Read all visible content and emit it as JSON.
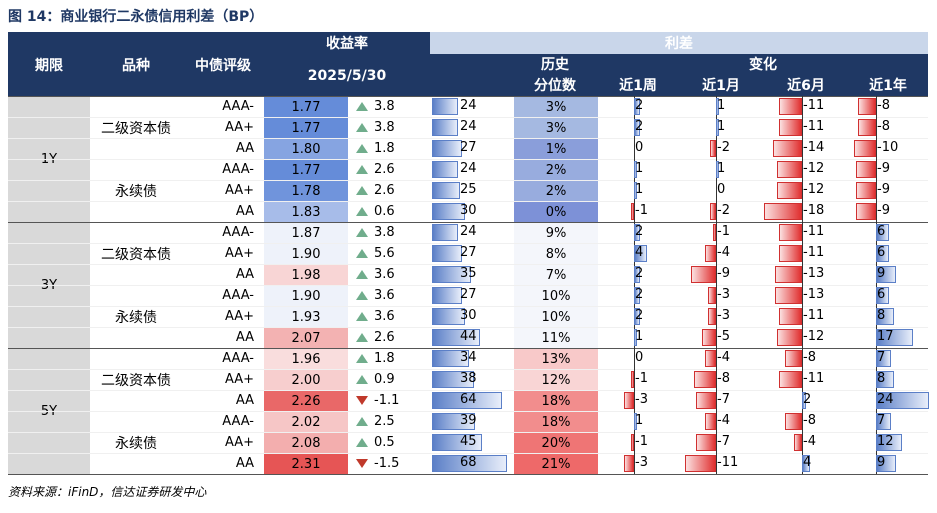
{
  "caption": "图 14：商业银行二永债信用利差（BP）",
  "source": "资料来源：iFinD，信达证券研发中心",
  "header": {
    "term": "期限",
    "type": "品种",
    "rating": "中债评级",
    "yield_group": "收益率",
    "spread_group": "利差",
    "date": "2025/5/30",
    "hist_line1": "历史",
    "hist_line2": "分位数",
    "change": "变化",
    "w1": "近1周",
    "m1": "近1月",
    "m6": "近6月",
    "y1": "近1年"
  },
  "colors": {
    "header_dark": "#1f3864",
    "header_light": "#c9d6ea",
    "group_bg": "#d9d9d9",
    "up_arrow": "#70ad8c",
    "down_arrow": "#c0392b"
  },
  "blocks": [
    {
      "term": "1Y",
      "groups": [
        {
          "type": "二级资本债",
          "rows": [
            {
              "rating": "AAA-",
              "yield": "1.77",
              "dir": "up",
              "chg": "3.8",
              "spread": "24",
              "pct": "3%",
              "w1": "2",
              "m1": "1",
              "m6": "-11",
              "y1": "-8"
            },
            {
              "rating": "AA+",
              "yield": "1.77",
              "dir": "up",
              "chg": "3.8",
              "spread": "24",
              "pct": "3%",
              "w1": "2",
              "m1": "1",
              "m6": "-11",
              "y1": "-8"
            },
            {
              "rating": "AA",
              "yield": "1.80",
              "dir": "up",
              "chg": "1.8",
              "spread": "27",
              "pct": "1%",
              "w1": "0",
              "m1": "-2",
              "m6": "-14",
              "y1": "-10"
            }
          ]
        },
        {
          "type": "永续债",
          "rows": [
            {
              "rating": "AAA-",
              "yield": "1.77",
              "dir": "up",
              "chg": "2.6",
              "spread": "24",
              "pct": "2%",
              "w1": "1",
              "m1": "1",
              "m6": "-12",
              "y1": "-9"
            },
            {
              "rating": "AA+",
              "yield": "1.78",
              "dir": "up",
              "chg": "2.6",
              "spread": "25",
              "pct": "2%",
              "w1": "1",
              "m1": "0",
              "m6": "-12",
              "y1": "-9"
            },
            {
              "rating": "AA",
              "yield": "1.83",
              "dir": "up",
              "chg": "0.6",
              "spread": "30",
              "pct": "0%",
              "w1": "-1",
              "m1": "-2",
              "m6": "-18",
              "y1": "-9"
            }
          ]
        }
      ]
    },
    {
      "term": "3Y",
      "groups": [
        {
          "type": "二级资本债",
          "rows": [
            {
              "rating": "AAA-",
              "yield": "1.87",
              "dir": "up",
              "chg": "3.8",
              "spread": "24",
              "pct": "9%",
              "w1": "2",
              "m1": "-1",
              "m6": "-11",
              "y1": "6"
            },
            {
              "rating": "AA+",
              "yield": "1.90",
              "dir": "up",
              "chg": "5.6",
              "spread": "27",
              "pct": "8%",
              "w1": "4",
              "m1": "-4",
              "m6": "-11",
              "y1": "6"
            },
            {
              "rating": "AA",
              "yield": "1.98",
              "dir": "up",
              "chg": "3.6",
              "spread": "35",
              "pct": "7%",
              "w1": "2",
              "m1": "-9",
              "m6": "-13",
              "y1": "9"
            }
          ]
        },
        {
          "type": "永续债",
          "rows": [
            {
              "rating": "AAA-",
              "yield": "1.90",
              "dir": "up",
              "chg": "3.6",
              "spread": "27",
              "pct": "10%",
              "w1": "2",
              "m1": "-3",
              "m6": "-13",
              "y1": "6"
            },
            {
              "rating": "AA+",
              "yield": "1.93",
              "dir": "up",
              "chg": "3.6",
              "spread": "30",
              "pct": "10%",
              "w1": "2",
              "m1": "-3",
              "m6": "-11",
              "y1": "8"
            },
            {
              "rating": "AA",
              "yield": "2.07",
              "dir": "up",
              "chg": "2.6",
              "spread": "44",
              "pct": "11%",
              "w1": "1",
              "m1": "-5",
              "m6": "-12",
              "y1": "17"
            }
          ]
        }
      ]
    },
    {
      "term": "5Y",
      "groups": [
        {
          "type": "二级资本债",
          "rows": [
            {
              "rating": "AAA-",
              "yield": "1.96",
              "dir": "up",
              "chg": "1.8",
              "spread": "34",
              "pct": "13%",
              "w1": "0",
              "m1": "-4",
              "m6": "-8",
              "y1": "7"
            },
            {
              "rating": "AA+",
              "yield": "2.00",
              "dir": "up",
              "chg": "0.9",
              "spread": "38",
              "pct": "12%",
              "w1": "-1",
              "m1": "-8",
              "m6": "-11",
              "y1": "8"
            },
            {
              "rating": "AA",
              "yield": "2.26",
              "dir": "down",
              "chg": "-1.1",
              "spread": "64",
              "pct": "18%",
              "w1": "-3",
              "m1": "-7",
              "m6": "2",
              "y1": "24"
            }
          ]
        },
        {
          "type": "永续债",
          "rows": [
            {
              "rating": "AAA-",
              "yield": "2.02",
              "dir": "up",
              "chg": "2.5",
              "spread": "39",
              "pct": "18%",
              "w1": "1",
              "m1": "-4",
              "m6": "-8",
              "y1": "7"
            },
            {
              "rating": "AA+",
              "yield": "2.08",
              "dir": "up",
              "chg": "0.5",
              "spread": "45",
              "pct": "20%",
              "w1": "-1",
              "m1": "-7",
              "m6": "-4",
              "y1": "12"
            },
            {
              "rating": "AA",
              "yield": "2.31",
              "dir": "down",
              "chg": "-1.5",
              "spread": "68",
              "pct": "21%",
              "w1": "-3",
              "m1": "-11",
              "m6": "4",
              "y1": "9"
            }
          ]
        }
      ]
    }
  ]
}
